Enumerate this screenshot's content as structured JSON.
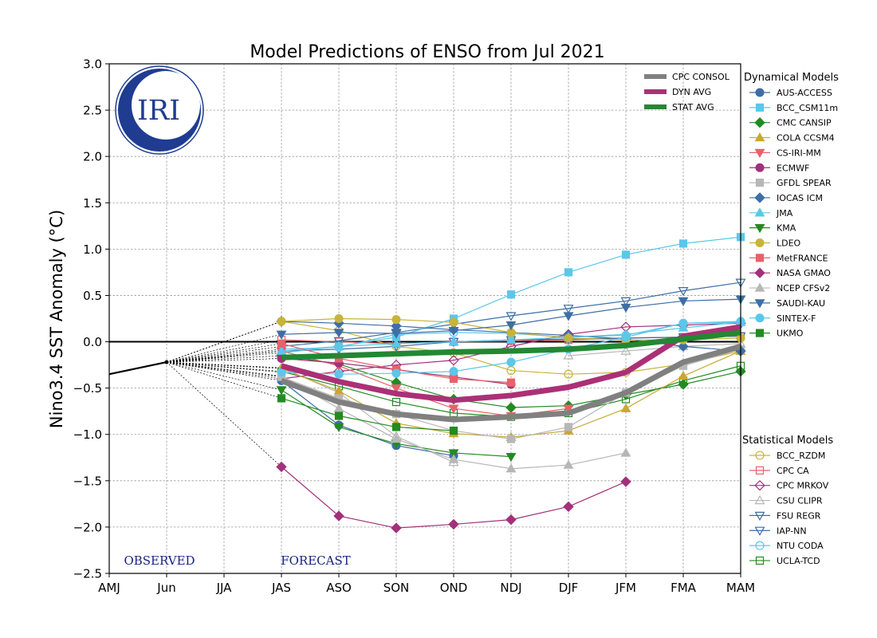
{
  "chart_data": {
    "type": "line",
    "title": "Model Predictions of ENSO from Jul 2021",
    "ylabel": "Nino3.4 SST Anomaly (°C)",
    "xlabel": "",
    "ylim": [
      -2.5,
      3.0
    ],
    "yticks": [
      -2.5,
      -2.0,
      -1.5,
      -1.0,
      -0.5,
      0.0,
      0.5,
      1.0,
      1.5,
      2.0,
      2.5,
      3.0
    ],
    "categories": [
      "AMJ",
      "Jun",
      "JJA",
      "JAS",
      "ASO",
      "SON",
      "OND",
      "NDJ",
      "DJF",
      "JFM",
      "FMA",
      "MAM"
    ],
    "grid": true,
    "observed": {
      "label": "OBSERVED",
      "x": [
        0,
        1
      ],
      "values": [
        -0.35,
        -0.22
      ]
    },
    "forecast_label": "FORECAST",
    "logo_text": "IRI",
    "consensus": [
      {
        "name": "CPC CONSOL",
        "color": "#808080",
        "values": [
          null,
          null,
          null,
          -0.42,
          -0.65,
          -0.78,
          -0.84,
          -0.81,
          -0.77,
          -0.55,
          -0.22,
          -0.05
        ]
      },
      {
        "name": "DYN AVG",
        "color": "#ab3076",
        "values": [
          null,
          null,
          null,
          -0.26,
          -0.43,
          -0.56,
          -0.63,
          -0.58,
          -0.49,
          -0.33,
          0.06,
          0.16
        ]
      },
      {
        "name": "STAT AVG",
        "color": "#228833",
        "values": [
          null,
          null,
          null,
          -0.17,
          -0.15,
          -0.13,
          -0.11,
          -0.1,
          -0.08,
          -0.04,
          0.03,
          0.1
        ]
      }
    ],
    "dynamical_title": "Dynamical Models",
    "dynamical": [
      {
        "name": "AUS-ACCESS",
        "color": "#3f6ea5",
        "marker": "circle",
        "filled": true,
        "values": [
          null,
          null,
          null,
          -0.42,
          -0.9,
          -1.12,
          -1.23,
          null,
          null,
          null,
          null,
          null
        ]
      },
      {
        "name": "BCC_CSM11m",
        "color": "#5bc7e9",
        "marker": "square",
        "filled": true,
        "values": [
          null,
          null,
          null,
          -0.12,
          -0.05,
          0.05,
          0.25,
          0.51,
          0.75,
          0.94,
          1.06,
          1.13
        ]
      },
      {
        "name": "CMC CANSIP",
        "color": "#228b22",
        "marker": "diamond",
        "filled": true,
        "values": [
          null,
          null,
          null,
          -0.15,
          -0.24,
          -0.44,
          -0.62,
          -0.71,
          -0.69,
          -0.57,
          -0.46,
          -0.32
        ]
      },
      {
        "name": "COLA CCSM4",
        "color": "#c8a832",
        "marker": "triangle-up",
        "filled": true,
        "values": [
          null,
          null,
          null,
          -0.29,
          -0.53,
          -0.88,
          -0.99,
          -1.03,
          -0.96,
          -0.72,
          -0.37,
          -0.1
        ]
      },
      {
        "name": "CS-IRI-MM",
        "color": "#e8616b",
        "marker": "triangle-down",
        "filled": true,
        "values": [
          null,
          null,
          null,
          -0.1,
          -0.26,
          -0.5,
          -0.72,
          -0.8,
          -0.72,
          null,
          null,
          null
        ]
      },
      {
        "name": "ECMWF",
        "color": "#a3307a",
        "marker": "circle",
        "filled": true,
        "values": [
          null,
          null,
          null,
          -0.18,
          -0.23,
          -0.3,
          -0.38,
          -0.46,
          null,
          null,
          null,
          null
        ]
      },
      {
        "name": "GFDL SPEAR",
        "color": "#b7b7b7",
        "marker": "square",
        "filled": true,
        "values": [
          null,
          null,
          null,
          -0.38,
          -0.61,
          -0.78,
          -0.96,
          -1.05,
          -0.92,
          -0.55,
          -0.26,
          -0.08
        ]
      },
      {
        "name": "IOCAS ICM",
        "color": "#3f6ea5",
        "marker": "diamond",
        "filled": true,
        "values": [
          null,
          null,
          null,
          0.22,
          0.2,
          0.17,
          0.13,
          0.1,
          0.07,
          0.03,
          -0.05,
          -0.1
        ]
      },
      {
        "name": "JMA",
        "color": "#5bc7e9",
        "marker": "triangle-up",
        "filled": true,
        "values": [
          null,
          null,
          null,
          -0.1,
          -0.05,
          -0.02,
          0.0,
          0.02,
          0.05,
          0.08,
          0.15,
          0.21
        ]
      },
      {
        "name": "KMA",
        "color": "#228b22",
        "marker": "triangle-down",
        "filled": true,
        "values": [
          null,
          null,
          null,
          -0.52,
          -0.92,
          -1.1,
          -1.2,
          -1.24,
          null,
          null,
          null,
          null
        ]
      },
      {
        "name": "LDEO",
        "color": "#c8b43a",
        "marker": "circle",
        "filled": true,
        "values": [
          null,
          null,
          null,
          0.22,
          0.25,
          0.24,
          0.21,
          0.1,
          0.04,
          0.02,
          0.02,
          0.04
        ]
      },
      {
        "name": "MetFRANCE",
        "color": "#e8616b",
        "marker": "square",
        "filled": true,
        "values": [
          null,
          null,
          null,
          -0.02,
          -0.18,
          -0.3,
          -0.4,
          -0.44,
          null,
          null,
          null,
          null
        ]
      },
      {
        "name": "NASA GMAO",
        "color": "#a3307a",
        "marker": "diamond",
        "filled": true,
        "values": [
          null,
          null,
          null,
          -1.35,
          -1.88,
          -2.01,
          -1.97,
          -1.92,
          -1.78,
          -1.51,
          null,
          null
        ]
      },
      {
        "name": "NCEP CFSv2",
        "color": "#b7b7b7",
        "marker": "triangle-up",
        "filled": true,
        "values": [
          null,
          null,
          null,
          -0.37,
          -0.72,
          -1.05,
          -1.27,
          -1.37,
          -1.33,
          -1.2,
          null,
          null
        ]
      },
      {
        "name": "SAUDI-KAU",
        "color": "#3f6ea5",
        "marker": "triangle-down",
        "filled": true,
        "values": [
          null,
          null,
          null,
          0.08,
          0.1,
          0.09,
          0.12,
          0.18,
          0.28,
          0.37,
          0.44,
          0.46
        ]
      },
      {
        "name": "SINTEX-F",
        "color": "#5bc7e9",
        "marker": "circle",
        "filled": true,
        "values": [
          null,
          null,
          null,
          -0.33,
          -0.35,
          -0.34,
          -0.32,
          -0.22,
          -0.08,
          0.05,
          0.2,
          0.21
        ]
      },
      {
        "name": "UKMO",
        "color": "#228b22",
        "marker": "square",
        "filled": true,
        "values": [
          null,
          null,
          null,
          -0.61,
          -0.8,
          -0.92,
          -0.96,
          null,
          null,
          null,
          null,
          null
        ]
      }
    ],
    "statistical_title": "Statistical Models",
    "statistical": [
      {
        "name": "BCC_RZDM",
        "color": "#c8b43a",
        "marker": "circle",
        "filled": false,
        "values": [
          null,
          null,
          null,
          0.22,
          0.12,
          -0.05,
          -0.12,
          -0.31,
          -0.35,
          -0.33,
          -0.24,
          -0.1
        ]
      },
      {
        "name": "CPC CA",
        "color": "#e8616b",
        "marker": "square",
        "filled": false,
        "values": [
          null,
          null,
          null,
          0.02,
          0.0,
          -0.02,
          0.0,
          0.01,
          0.02,
          0.04,
          0.05,
          0.06
        ]
      },
      {
        "name": "CPC MRKOV",
        "color": "#a3307a",
        "marker": "diamond",
        "filled": false,
        "values": [
          null,
          null,
          null,
          -0.4,
          -0.32,
          -0.25,
          -0.2,
          -0.05,
          0.08,
          0.16,
          0.18,
          0.2
        ]
      },
      {
        "name": "CSU CLIPR",
        "color": "#b7b7b7",
        "marker": "triangle-up",
        "filled": false,
        "values": [
          null,
          null,
          null,
          -0.28,
          -0.55,
          -1.02,
          -1.3,
          null,
          -0.15,
          -0.1,
          -0.05,
          -0.02
        ]
      },
      {
        "name": "FSU REGR",
        "color": "#3f6ea5",
        "marker": "triangle-down",
        "filled": false,
        "values": [
          null,
          null,
          null,
          -0.05,
          0.01,
          0.1,
          0.19,
          0.28,
          0.36,
          0.44,
          0.55,
          0.64
        ]
      },
      {
        "name": "IAP-NN",
        "color": "#3f6ea5",
        "marker": "triangle-down",
        "filled": false,
        "values": [
          null,
          null,
          null,
          -0.1,
          -0.08,
          -0.05,
          0.0,
          0.02,
          0.03,
          0.04,
          0.05,
          0.06
        ]
      },
      {
        "name": "NTU CODA",
        "color": "#5bc7e9",
        "marker": "circle",
        "filled": false,
        "values": [
          null,
          null,
          null,
          -0.08,
          -0.06,
          0.08,
          0.1,
          0.09,
          0.05,
          0.07,
          0.2,
          0.22
        ]
      },
      {
        "name": "UCLA-TCD",
        "color": "#228b22",
        "marker": "square",
        "filled": false,
        "values": [
          null,
          null,
          null,
          -0.32,
          -0.48,
          -0.65,
          -0.77,
          -0.81,
          -0.77,
          -0.62,
          -0.42,
          -0.26
        ]
      }
    ]
  }
}
